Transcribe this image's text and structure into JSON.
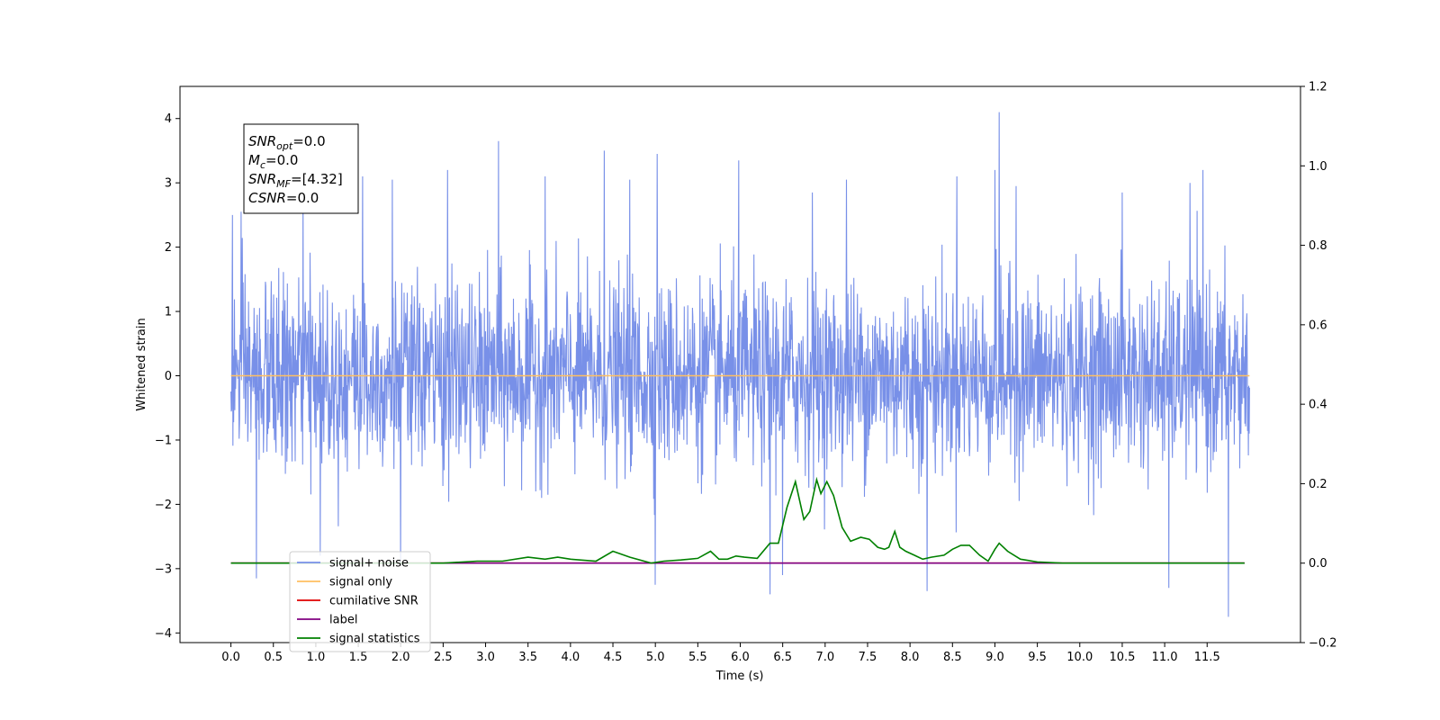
{
  "chart_data": {
    "type": "line",
    "title": "",
    "xlabel": "Time (s)",
    "ylabel": "Whitened strain",
    "xlim": [
      -0.6,
      12.6
    ],
    "ylim": [
      -4.15,
      4.5
    ],
    "y2lim": [
      -0.2,
      1.2
    ],
    "x_ticks": [
      "0.0",
      "0.5",
      "1.0",
      "1.5",
      "2.0",
      "2.5",
      "3.0",
      "3.5",
      "4.0",
      "4.5",
      "5.0",
      "5.5",
      "6.0",
      "6.5",
      "7.0",
      "7.5",
      "8.0",
      "8.5",
      "9.0",
      "9.5",
      "10.0",
      "10.5",
      "11.0",
      "11.5"
    ],
    "y_ticks": [
      "4",
      "3",
      "2",
      "1",
      "0",
      "−1",
      "−2",
      "−3",
      "−4"
    ],
    "y2_ticks": [
      "1.2",
      "1.0",
      "0.8",
      "0.6",
      "0.4",
      "0.2",
      "0.0",
      "−0.2"
    ],
    "annotation": [
      {
        "base": "SNR",
        "sub": "opt",
        "rest": "=0.0"
      },
      {
        "base": "M",
        "sub": "c",
        "rest": "=0.0"
      },
      {
        "base": "SNR",
        "sub": "MF",
        "rest": "=[4.32]"
      },
      {
        "base": "CSNR",
        "sub": "",
        "rest": "=0.0"
      }
    ],
    "legend_position": "lower-left",
    "noise_series": {
      "name": "signal+ noise",
      "color": "#7890e8",
      "x_start": 0.0,
      "x_end": 12.0,
      "typical_amplitude": 1.2,
      "peaks": [
        {
          "x": 0.02,
          "y": 2.5
        },
        {
          "x": 0.12,
          "y": 2.55
        },
        {
          "x": 0.3,
          "y": -3.15
        },
        {
          "x": 0.85,
          "y": 2.9
        },
        {
          "x": 1.05,
          "y": -2.8
        },
        {
          "x": 1.55,
          "y": 3.1
        },
        {
          "x": 1.9,
          "y": 3.05
        },
        {
          "x": 2.0,
          "y": -2.95
        },
        {
          "x": 2.55,
          "y": 3.2
        },
        {
          "x": 3.15,
          "y": 3.65
        },
        {
          "x": 3.7,
          "y": 3.1
        },
        {
          "x": 4.4,
          "y": 3.5
        },
        {
          "x": 4.7,
          "y": 3.05
        },
        {
          "x": 5.0,
          "y": -3.25
        },
        {
          "x": 5.02,
          "y": 3.45
        },
        {
          "x": 5.98,
          "y": 3.35
        },
        {
          "x": 6.35,
          "y": 3.45
        },
        {
          "x": 6.35,
          "y": -3.4
        },
        {
          "x": 6.5,
          "y": -3.1
        },
        {
          "x": 6.85,
          "y": 2.85
        },
        {
          "x": 7.25,
          "y": 3.05
        },
        {
          "x": 8.2,
          "y": -3.35
        },
        {
          "x": 8.55,
          "y": 3.1
        },
        {
          "x": 9.05,
          "y": 4.1
        },
        {
          "x": 9.0,
          "y": 3.2
        },
        {
          "x": 9.25,
          "y": 2.95
        },
        {
          "x": 10.5,
          "y": 2.85
        },
        {
          "x": 11.05,
          "y": -3.3
        },
        {
          "x": 11.3,
          "y": 3.0
        },
        {
          "x": 11.45,
          "y": 3.2
        },
        {
          "x": 11.75,
          "y": -3.75
        }
      ]
    },
    "series": [
      {
        "name": "signal only",
        "axis": "left",
        "color": "#ffbf60",
        "x": [
          0.0,
          12.0
        ],
        "y": [
          0.0,
          0.0
        ]
      },
      {
        "name": "cumilative SNR",
        "axis": "right",
        "color": "#e00000",
        "x": [
          0.0,
          11.94
        ],
        "y": [
          0.0,
          0.0
        ]
      },
      {
        "name": "label",
        "axis": "right",
        "color": "#800080",
        "x": [
          0.0,
          11.94
        ],
        "y": [
          0.0,
          0.0
        ]
      },
      {
        "name": "signal statistics",
        "axis": "right",
        "color": "#008000",
        "x": [
          0.0,
          2.5,
          2.9,
          3.2,
          3.5,
          3.7,
          3.85,
          4.0,
          4.3,
          4.5,
          4.7,
          4.95,
          5.1,
          5.3,
          5.5,
          5.65,
          5.75,
          5.85,
          5.95,
          6.05,
          6.2,
          6.35,
          6.45,
          6.55,
          6.65,
          6.75,
          6.82,
          6.9,
          6.95,
          7.02,
          7.1,
          7.2,
          7.3,
          7.42,
          7.52,
          7.62,
          7.7,
          7.75,
          7.82,
          7.88,
          7.95,
          8.05,
          8.15,
          8.25,
          8.4,
          8.5,
          8.6,
          8.7,
          8.82,
          8.92,
          9.0,
          9.05,
          9.15,
          9.3,
          9.5,
          9.8,
          10.5,
          11.94
        ],
        "y": [
          0.0,
          0.0,
          0.005,
          0.005,
          0.015,
          0.01,
          0.015,
          0.01,
          0.005,
          0.03,
          0.015,
          0.0,
          0.005,
          0.008,
          0.012,
          0.03,
          0.01,
          0.01,
          0.018,
          0.015,
          0.012,
          0.05,
          0.05,
          0.14,
          0.205,
          0.11,
          0.13,
          0.21,
          0.175,
          0.205,
          0.17,
          0.09,
          0.055,
          0.065,
          0.06,
          0.04,
          0.035,
          0.04,
          0.08,
          0.04,
          0.03,
          0.02,
          0.01,
          0.015,
          0.02,
          0.035,
          0.045,
          0.045,
          0.02,
          0.005,
          0.035,
          0.05,
          0.03,
          0.01,
          0.003,
          0.0,
          0.0,
          0.0
        ]
      }
    ]
  }
}
